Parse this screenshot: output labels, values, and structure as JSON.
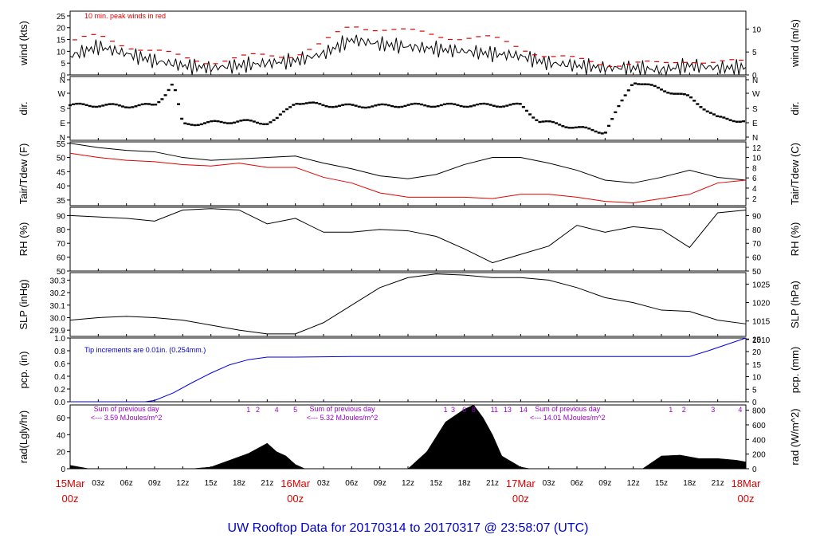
{
  "title": "UW Rooftop Data for 20170314  to  20170317 @ 23:58:07  (UTC)",
  "colors": {
    "peak": "#e00000",
    "temp": "#000000",
    "dew": "#e00000",
    "pcp": "#0000dd",
    "day_label": "#e00000",
    "title": "#0000cc",
    "note_pcp": "#0000cc",
    "sum_note": "#9900cc"
  },
  "x_axis": {
    "hour_ticks": [
      "03z",
      "06z",
      "09z",
      "12z",
      "15z",
      "18z",
      "21z",
      "03z",
      "06z",
      "09z",
      "12z",
      "15z",
      "18z",
      "21z",
      "03z",
      "06z",
      "09z",
      "12z",
      "15z",
      "18z",
      "21z"
    ],
    "day_labels": [
      {
        "top": "15Mar",
        "bottom": "00z"
      },
      {
        "top": "16Mar",
        "bottom": "00z"
      },
      {
        "top": "17Mar",
        "bottom": "00z"
      },
      {
        "top": "18Mar",
        "bottom": "00z"
      }
    ]
  },
  "chart_data": [
    {
      "type": "line",
      "name": "wind",
      "ylabel_left": "wind (kts)",
      "ylabel_right": "wind (m/s)",
      "ylim": [
        0,
        27
      ],
      "left_ticks": [
        "0",
        "5",
        "10",
        "15",
        "20",
        "25"
      ],
      "right_ticks": [
        "0",
        "5",
        "10"
      ],
      "annotation": "10 min. peak winds in red",
      "x_hours": [
        0,
        3,
        6,
        9,
        12,
        15,
        18,
        21,
        24,
        27,
        30,
        33,
        36,
        39,
        42,
        45,
        48,
        51,
        54,
        57,
        60,
        63,
        66,
        69,
        72
      ],
      "series": [
        {
          "name": "wind",
          "values": [
            8,
            12,
            9,
            6,
            4,
            3,
            4,
            5,
            6,
            9,
            15,
            13,
            12,
            11,
            10,
            9,
            8,
            5,
            4,
            3,
            3,
            2,
            4,
            3,
            3
          ]
        },
        {
          "name": "peak",
          "values": [
            14,
            16,
            13,
            10,
            7,
            6,
            7,
            8,
            9,
            13,
            21,
            20,
            18,
            17,
            16,
            15,
            12,
            8,
            6,
            5,
            5,
            4,
            7,
            5,
            5
          ]
        }
      ]
    },
    {
      "type": "scatter",
      "name": "dir",
      "ylabel_left": "dir.",
      "ylabel_right": "dir.",
      "left_ticks": [
        "N",
        "E",
        "S",
        "W",
        "N"
      ],
      "right_ticks": [
        "N",
        "E",
        "S",
        "W",
        "N"
      ],
      "ylim": [
        0,
        360
      ],
      "x_hours": [
        0,
        3,
        6,
        9,
        10,
        11,
        12,
        15,
        18,
        21,
        22,
        24,
        27,
        30,
        33,
        36,
        39,
        42,
        45,
        48,
        50,
        52,
        54,
        57,
        60,
        63,
        66,
        69,
        72
      ],
      "values": [
        200,
        200,
        195,
        200,
        260,
        340,
        80,
        90,
        100,
        90,
        110,
        220,
        200,
        195,
        195,
        200,
        200,
        200,
        200,
        200,
        100,
        80,
        60,
        30,
        350,
        300,
        250,
        120,
        100
      ]
    },
    {
      "type": "line",
      "name": "temp",
      "ylabel_left": "Tair/Tdew (F)",
      "ylabel_right": "Tair/Tdew (C)",
      "ylim": [
        33,
        55.5
      ],
      "left_ticks": [
        "35",
        "40",
        "45",
        "50",
        "55"
      ],
      "right_ticks": [
        "2",
        "4",
        "6",
        "8",
        "10",
        "12"
      ],
      "x_hours": [
        0,
        3,
        6,
        9,
        12,
        15,
        18,
        21,
        24,
        27,
        30,
        33,
        36,
        39,
        42,
        45,
        48,
        51,
        54,
        57,
        60,
        63,
        66,
        69,
        72
      ],
      "series": [
        {
          "name": "Tair",
          "values": [
            55,
            53.5,
            52.5,
            52,
            50,
            49,
            49.5,
            50,
            50.5,
            48,
            46,
            43.5,
            42.5,
            44,
            47.5,
            50,
            50,
            48,
            45.5,
            42,
            41,
            43,
            45.5,
            43,
            42
          ]
        },
        {
          "name": "Tdew",
          "values": [
            51.5,
            50,
            49,
            48.5,
            47.5,
            47,
            48,
            46.5,
            46.5,
            43,
            41,
            37.5,
            36,
            36,
            36,
            35.5,
            37,
            37,
            36,
            34.5,
            34,
            35.5,
            37,
            41,
            42
          ]
        }
      ]
    },
    {
      "type": "line",
      "name": "rh",
      "ylabel_left": "RH (%)",
      "ylabel_right": "RH (%)",
      "ylim": [
        50,
        96
      ],
      "left_ticks": [
        "50",
        "60",
        "70",
        "80",
        "90"
      ],
      "right_ticks": [
        "50",
        "60",
        "70",
        "80",
        "90"
      ],
      "x_hours": [
        0,
        3,
        6,
        9,
        12,
        15,
        18,
        21,
        24,
        27,
        30,
        33,
        36,
        39,
        42,
        45,
        48,
        51,
        54,
        57,
        60,
        63,
        66,
        69,
        72
      ],
      "values": [
        90,
        89,
        88,
        86,
        94,
        95,
        94,
        84,
        88,
        78,
        78,
        80,
        79,
        75,
        66,
        56,
        62,
        68,
        83,
        78,
        82,
        80,
        67,
        92,
        94
      ]
    },
    {
      "type": "line",
      "name": "slp",
      "ylabel_left": "SLP (inHg)",
      "ylabel_right": "SLP (hPa)",
      "ylim": [
        29.85,
        30.36
      ],
      "left_ticks": [
        "29.9",
        "30.0",
        "30.1",
        "30.2",
        "30.3"
      ],
      "right_ticks": [
        "1010",
        "1015",
        "1020",
        "1025"
      ],
      "x_hours": [
        0,
        3,
        6,
        9,
        12,
        15,
        18,
        21,
        24,
        27,
        30,
        33,
        36,
        39,
        42,
        45,
        48,
        51,
        54,
        57,
        60,
        63,
        66,
        69,
        72
      ],
      "values": [
        29.98,
        30.0,
        30.01,
        30.0,
        29.98,
        29.94,
        29.9,
        29.87,
        29.87,
        29.96,
        30.1,
        30.24,
        30.32,
        30.35,
        30.34,
        30.32,
        30.32,
        30.3,
        30.24,
        30.16,
        30.12,
        30.06,
        30.05,
        29.98,
        29.95
      ]
    },
    {
      "type": "line",
      "name": "pcp",
      "ylabel_left": "pcp. (in)",
      "ylabel_right": "pcp. (mm)",
      "ylim": [
        0,
        1.0
      ],
      "left_ticks": [
        "0.0",
        "0.2",
        "0.4",
        "0.6",
        "0.8",
        "1.0"
      ],
      "right_ticks": [
        "0",
        "5",
        "10",
        "15",
        "20",
        "25"
      ],
      "annotation": "Tip increments are 0.01in. (0.254mm.)",
      "x_hours": [
        0,
        8,
        9,
        11,
        13,
        15,
        17,
        19,
        21,
        24,
        30,
        36,
        42,
        48,
        54,
        60,
        63,
        66,
        68,
        70,
        72
      ],
      "values": [
        0,
        0,
        0.02,
        0.14,
        0.3,
        0.45,
        0.58,
        0.66,
        0.7,
        0.7,
        0.71,
        0.71,
        0.71,
        0.71,
        0.71,
        0.71,
        0.71,
        0.71,
        0.8,
        0.9,
        1.0
      ]
    },
    {
      "type": "area",
      "name": "rad",
      "ylabel_left": "rad(Lgly/hr)",
      "ylabel_right": "rad (W/m^2)",
      "ylim": [
        0,
        75
      ],
      "left_ticks": [
        "0",
        "20",
        "40",
        "60"
      ],
      "right_ticks": [
        "0",
        "200",
        "400",
        "600",
        "800"
      ],
      "x_hours": [
        0,
        1,
        2,
        13,
        15,
        17,
        19,
        21,
        22,
        23,
        24,
        25,
        26,
        36,
        38,
        40,
        42,
        43,
        44,
        45,
        46,
        48,
        49,
        50,
        61,
        63,
        65,
        67,
        69,
        71,
        72
      ],
      "values": [
        4,
        2,
        0,
        0,
        2,
        10,
        18,
        30,
        20,
        15,
        5,
        0,
        0,
        0,
        20,
        55,
        70,
        75,
        60,
        40,
        15,
        2,
        0,
        0,
        0,
        15,
        16,
        12,
        12,
        10,
        8
      ],
      "day_sums": [
        {
          "line1": "Sum of previous day",
          "line2": "<--- 3.59 MJoules/m^2",
          "x_hour": 6
        },
        {
          "line1": "Sum of previous day",
          "line2": "<--- 5.32 MJoules/m^2",
          "x_hour": 29
        },
        {
          "line1": "Sum of previous day",
          "line2": "<--- 14.01 MJoules/m^2",
          "x_hour": 53
        }
      ],
      "event_labels": [
        {
          "text": "1",
          "x_hour": 19
        },
        {
          "text": "2",
          "x_hour": 20
        },
        {
          "text": "4",
          "x_hour": 22
        },
        {
          "text": "5",
          "x_hour": 24
        },
        {
          "text": "1",
          "x_hour": 40
        },
        {
          "text": "3",
          "x_hour": 40.8
        },
        {
          "text": "6",
          "x_hour": 42
        },
        {
          "text": "8",
          "x_hour": 43
        },
        {
          "text": "11",
          "x_hour": 45.2
        },
        {
          "text": "13",
          "x_hour": 46.6
        },
        {
          "text": "14",
          "x_hour": 48.3
        },
        {
          "text": "1",
          "x_hour": 64
        },
        {
          "text": "2",
          "x_hour": 65.4
        },
        {
          "text": "3",
          "x_hour": 68.5
        },
        {
          "text": "4",
          "x_hour": 71.4
        }
      ]
    }
  ]
}
